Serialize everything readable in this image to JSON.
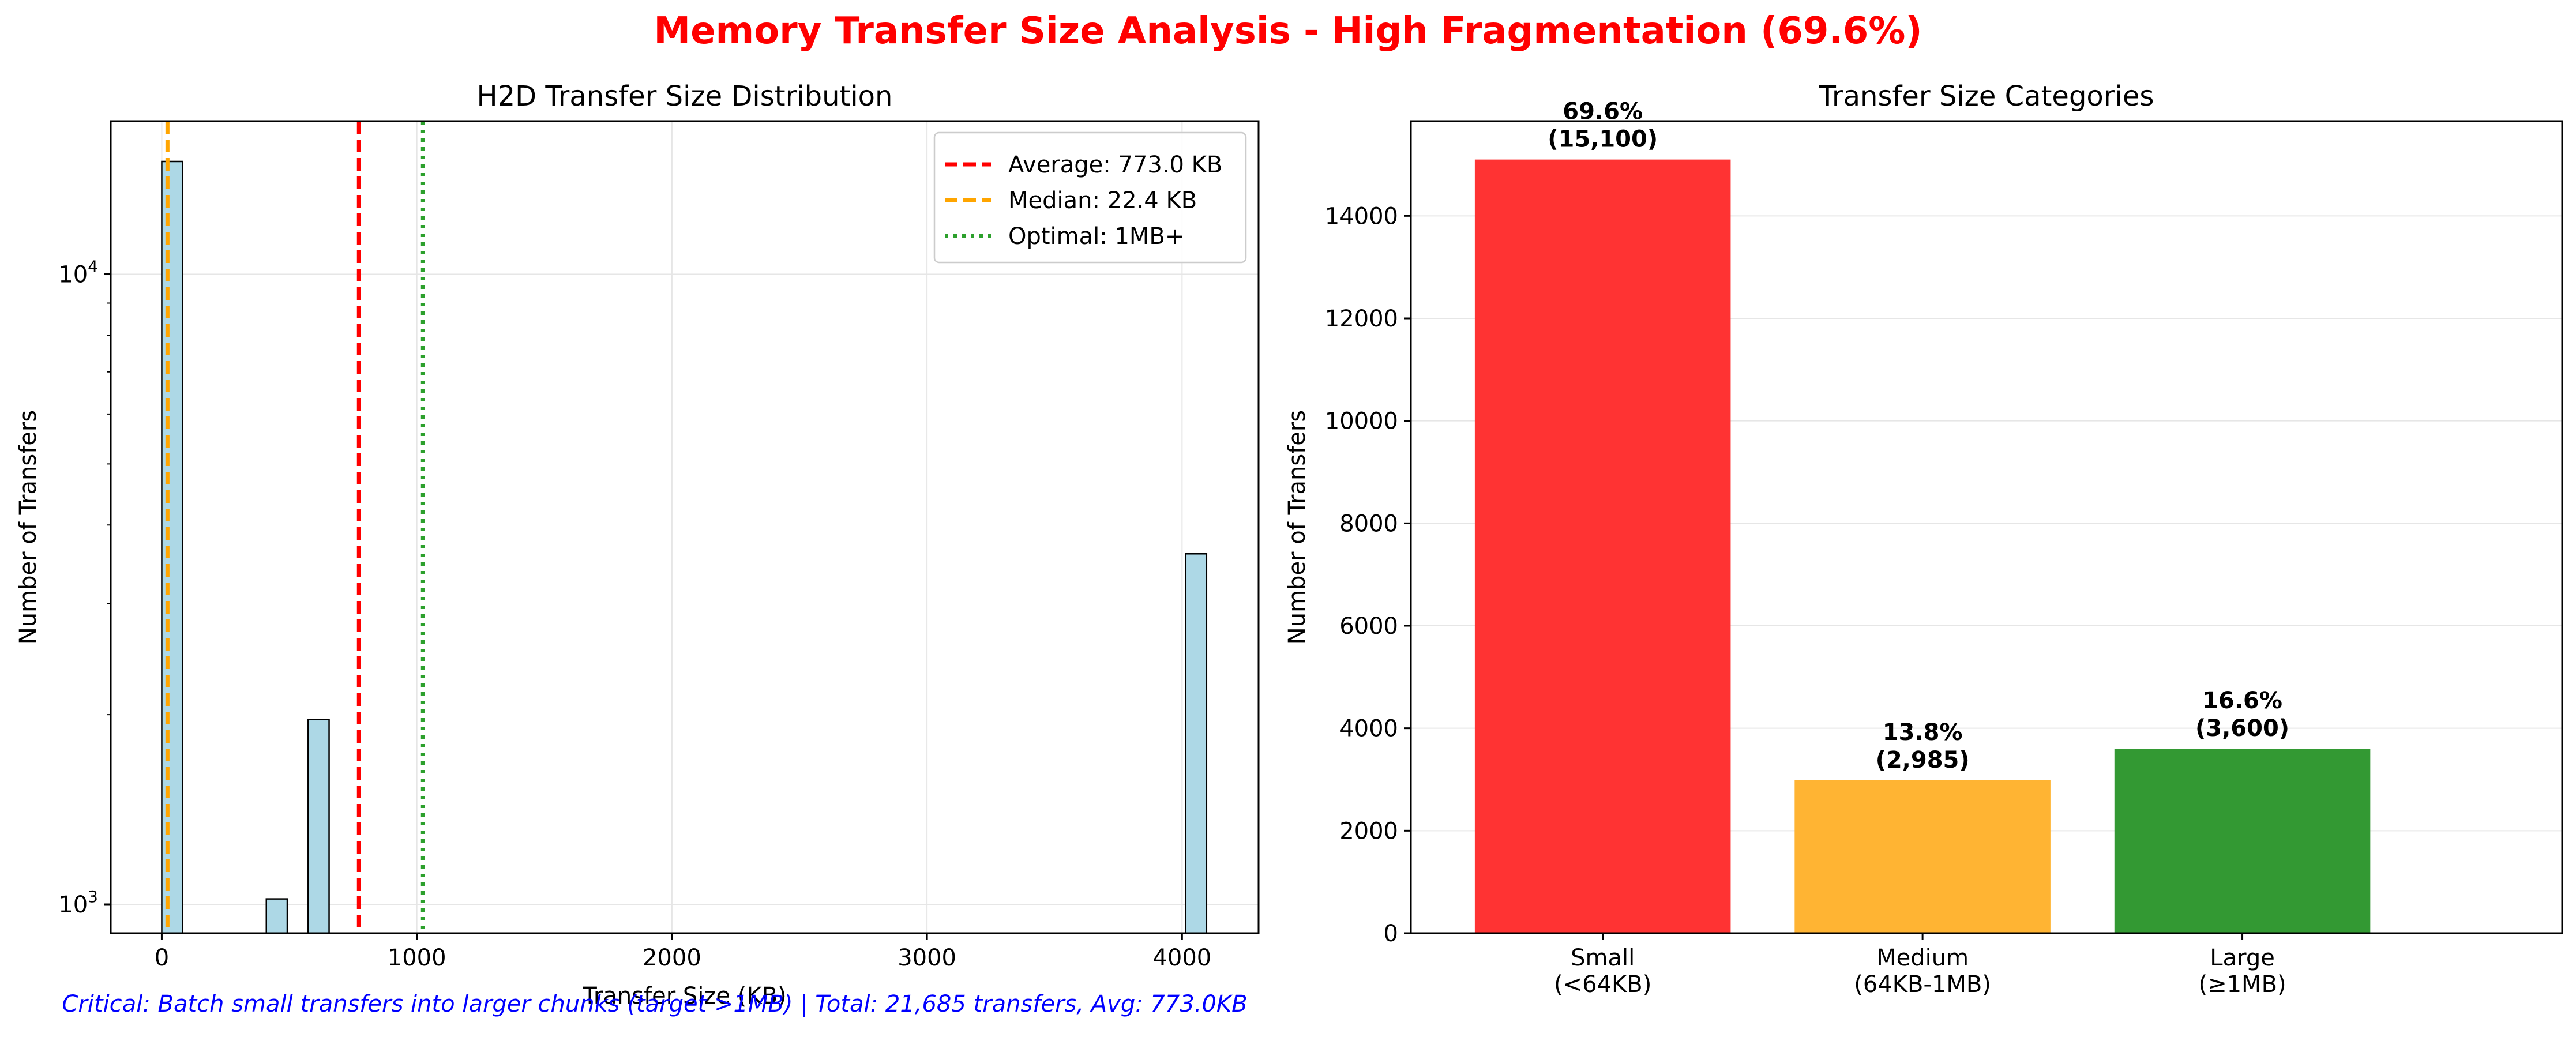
{
  "figure": {
    "title": "Memory Transfer Size Analysis - High Fragmentation (69.6%)",
    "title_color": "#ff0000",
    "footnote": "Critical: Batch small transfers into larger chunks (target >1MB) | Total: 21,685 transfers, Avg: 773.0KB",
    "footnote_color": "#0000ff"
  },
  "chart_data": [
    {
      "type": "bar",
      "subtype": "histogram",
      "title": "H2D Transfer Size Distribution",
      "xlabel": "Transfer Size (KB)",
      "ylabel": "Number of Transfers",
      "xscale": "linear",
      "yscale": "log",
      "xlim": [
        -200,
        4300
      ],
      "ylim": [
        900,
        17500
      ],
      "xticks": [
        {
          "value": 0,
          "label": "0"
        },
        {
          "value": 1000,
          "label": "1000"
        },
        {
          "value": 2000,
          "label": "2000"
        },
        {
          "value": 3000,
          "label": "3000"
        },
        {
          "value": 4000,
          "label": "4000"
        }
      ],
      "yticks": [
        {
          "value": 1000,
          "label": "10",
          "exp": "3"
        },
        {
          "value": 10000,
          "label": "10",
          "exp": "4"
        }
      ],
      "grid": true,
      "bar_fill": "#add8e6",
      "bar_edge": "#000000",
      "bins": [
        {
          "x0": 0,
          "x1": 82,
          "count": 15100
        },
        {
          "x0": 410,
          "x1": 492,
          "count": 1020
        },
        {
          "x0": 574,
          "x1": 656,
          "count": 1965
        },
        {
          "x0": 4014,
          "x1": 4096,
          "count": 3600
        }
      ],
      "reference_lines": [
        {
          "x": 773.0,
          "label": "Average: 773.0 KB",
          "color": "#ff0000",
          "style": "dashed"
        },
        {
          "x": 22.4,
          "label": "Median: 22.4 KB",
          "color": "#ffa500",
          "style": "dashed"
        },
        {
          "x": 1024,
          "label": "Optimal: 1MB+",
          "color": "#2ca02c",
          "style": "dotted"
        }
      ],
      "legend_position": "top-right"
    },
    {
      "type": "bar",
      "title": "Transfer Size Categories",
      "xlabel": "",
      "ylabel": "Number of Transfers",
      "ylim": [
        0,
        15850
      ],
      "yticks": [
        0,
        2000,
        4000,
        6000,
        8000,
        10000,
        12000,
        14000
      ],
      "grid": true,
      "categories": [
        {
          "line1": "Small",
          "line2": "(<64KB)"
        },
        {
          "line1": "Medium",
          "line2": "(64KB-1MB)"
        },
        {
          "line1": "Large",
          "line2": "(≥1MB)"
        }
      ],
      "values": [
        15100,
        2985,
        3600
      ],
      "percent_labels": [
        "69.6%",
        "13.8%",
        "16.6%"
      ],
      "count_labels": [
        "(15,100)",
        "(2,985)",
        "(3,600)"
      ],
      "colors": [
        "#ff3333",
        "#ffb433",
        "#339933"
      ]
    }
  ]
}
